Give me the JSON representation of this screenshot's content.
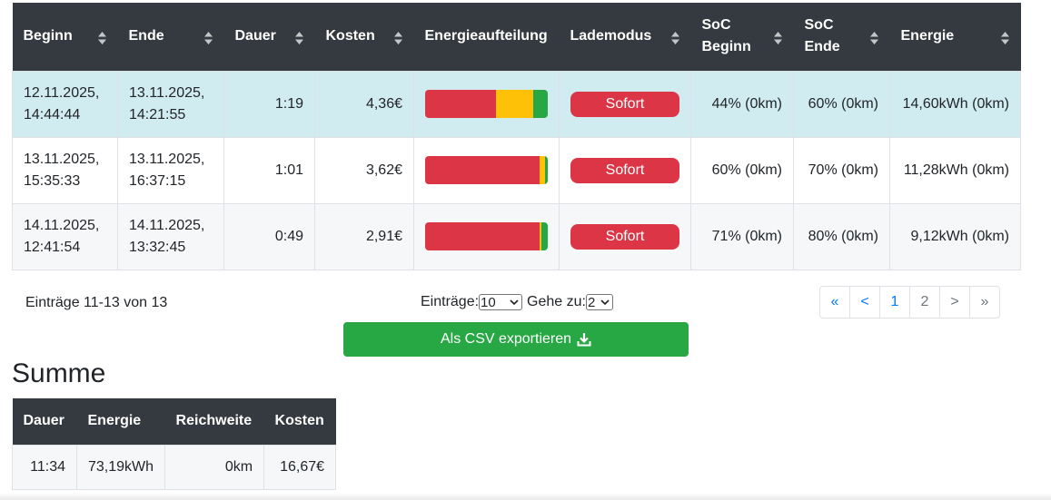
{
  "table": {
    "headers": [
      {
        "label": "Beginn",
        "sortable": true
      },
      {
        "label": "Ende",
        "sortable": true
      },
      {
        "label": "Dauer",
        "sortable": true
      },
      {
        "label": "Kosten",
        "sortable": true
      },
      {
        "label": "Energieaufteilung",
        "sortable": false
      },
      {
        "label": "Lademodus",
        "sortable": true
      },
      {
        "label": "SoC Beginn",
        "sortable": true
      },
      {
        "label": "SoC Ende",
        "sortable": true
      },
      {
        "label": "Energie",
        "sortable": true
      }
    ],
    "rows": [
      {
        "begin_date": "12.11.2025,",
        "begin_time": "14:44:44",
        "end_date": "13.11.2025,",
        "end_time": "14:21:55",
        "duration": "1:19",
        "cost": "4,36€",
        "split": [
          0.58,
          0.3,
          0.12
        ],
        "mode": "Sofort",
        "soc_begin": "44% (0km)",
        "soc_end": "60% (0km)",
        "energy": "14,60kWh (0km)"
      },
      {
        "begin_date": "13.11.2025,",
        "begin_time": "15:35:33",
        "end_date": "13.11.2025,",
        "end_time": "16:37:15",
        "duration": "1:01",
        "cost": "3,62€",
        "split": [
          0.93,
          0.05,
          0.02
        ],
        "mode": "Sofort",
        "soc_begin": "60% (0km)",
        "soc_end": "70% (0km)",
        "energy": "11,28kWh (0km)"
      },
      {
        "begin_date": "14.11.2025,",
        "begin_time": "12:41:54",
        "end_date": "14.11.2025,",
        "end_time": "13:32:45",
        "duration": "0:49",
        "cost": "2,91€",
        "split": [
          0.93,
          0.02,
          0.05
        ],
        "mode": "Sofort",
        "soc_begin": "71% (0km)",
        "soc_end": "80% (0km)",
        "energy": "9,12kWh (0km)"
      }
    ],
    "split_colors": [
      "#dc3545",
      "#ffc107",
      "#28a745"
    ]
  },
  "footer": {
    "entries_info": "Einträge 11-13 von 13",
    "per_page_label": "Einträge:",
    "per_page_value": "10",
    "goto_label": "Gehe zu:",
    "goto_value": "2",
    "pagination": [
      "«",
      "<",
      "1",
      "2",
      ">",
      "»"
    ],
    "export_label": "Als CSV exportieren"
  },
  "summary": {
    "title": "Summe",
    "headers": [
      "Dauer",
      "Energie",
      "Reichweite",
      "Kosten"
    ],
    "values": [
      "11:34",
      "73,19kWh",
      "0km",
      "16,67€"
    ]
  }
}
